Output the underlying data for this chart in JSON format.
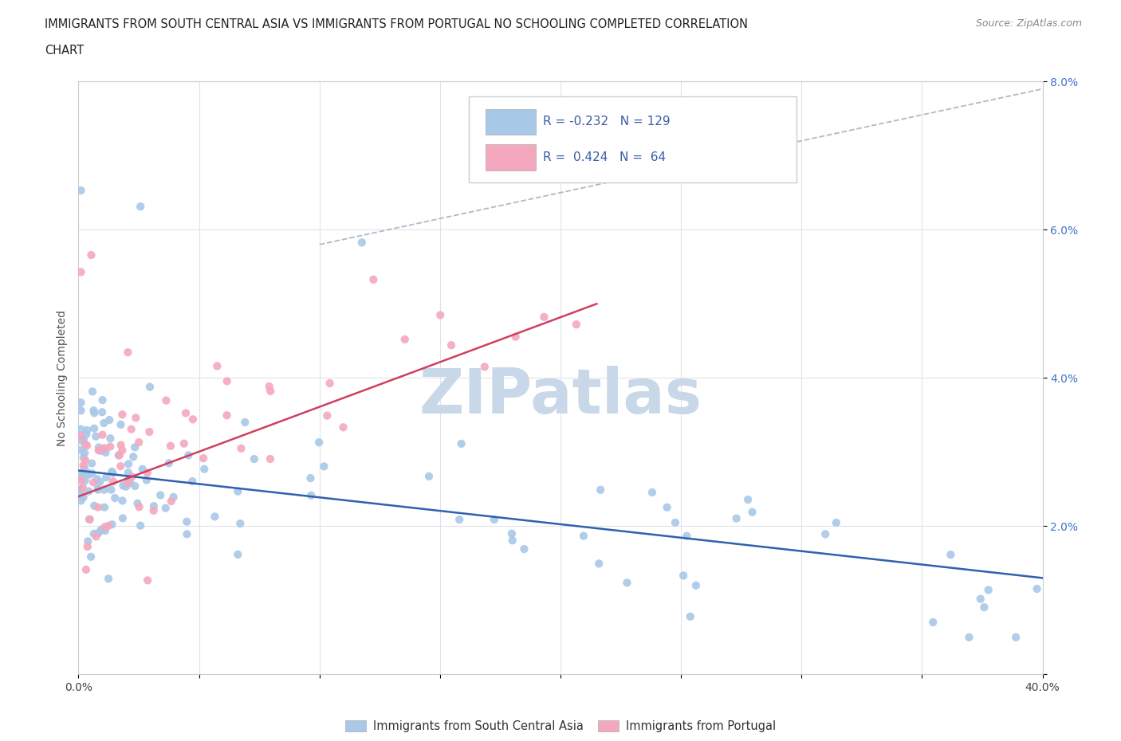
{
  "title_line1": "IMMIGRANTS FROM SOUTH CENTRAL ASIA VS IMMIGRANTS FROM PORTUGAL NO SCHOOLING COMPLETED CORRELATION",
  "title_line2": "CHART",
  "source": "Source: ZipAtlas.com",
  "ylabel": "No Schooling Completed",
  "xlim": [
    0.0,
    0.4
  ],
  "ylim": [
    0.0,
    0.08
  ],
  "blue_R": -0.232,
  "blue_N": 129,
  "pink_R": 0.424,
  "pink_N": 64,
  "blue_color": "#a8c8e8",
  "pink_color": "#f4a8be",
  "blue_line_color": "#3060b0",
  "pink_line_color": "#d04060",
  "dashed_line_color": "#b0b8c8",
  "watermark": "ZIPatlas",
  "watermark_color": "#c8d8e8",
  "legend_label_blue": "Immigrants from South Central Asia",
  "legend_label_pink": "Immigrants from Portugal",
  "blue_trend": [
    0.0,
    0.4,
    0.0275,
    0.013
  ],
  "pink_trend": [
    0.0,
    0.215,
    0.024,
    0.05
  ],
  "dash_trend": [
    0.1,
    0.4,
    0.058,
    0.079
  ]
}
